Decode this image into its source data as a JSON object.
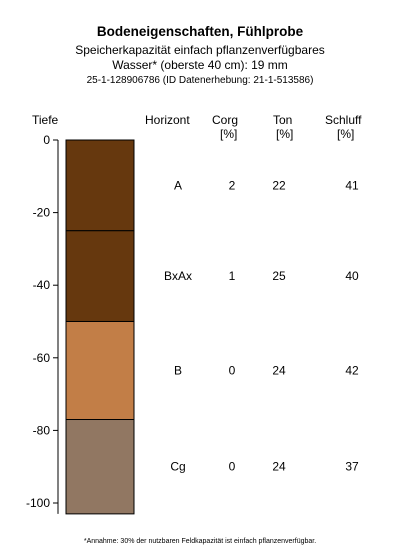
{
  "title": "Bodeneigenschaften, Fühlprobe",
  "subtitle_line1": "Speicherkapazität einfach pflanzenverfügbares",
  "subtitle_line2": "Wasser* (oberste 40 cm): 19 mm",
  "subtitle_line3": "25-1-128906786 (ID Datenerhebung: 21-1-513586)",
  "headers": {
    "depth": "Tiefe",
    "horizon": "Horizont",
    "corg": "Corg",
    "corg_unit": "[%]",
    "ton": "Ton",
    "ton_unit": "[%]",
    "schluff": "Schluff",
    "schluff_unit": "[%]"
  },
  "footnote": "*Annahme: 30% der nutzbaren Feldkapazität ist einfach pflanzenverfügbar.",
  "chart_data": {
    "type": "table",
    "y_axis": {
      "label": "Tiefe",
      "range": [
        0,
        -103
      ],
      "ticks": [
        0,
        -20,
        -40,
        -60,
        -80,
        -100
      ]
    },
    "horizons": [
      {
        "name": "A",
        "top": 0,
        "bottom": -25,
        "color": "#66380e",
        "corg": "2",
        "ton": "22",
        "schluff": "41"
      },
      {
        "name": "BxAx",
        "top": -25,
        "bottom": -50,
        "color": "#66380e",
        "corg": "1",
        "ton": "25",
        "schluff": "40"
      },
      {
        "name": "B",
        "top": -50,
        "bottom": -77,
        "color": "#c27e47",
        "corg": "0",
        "ton": "24",
        "schluff": "42"
      },
      {
        "name": "Cg",
        "top": -77,
        "bottom": -103,
        "color": "#917762",
        "corg": "0",
        "ton": "24",
        "schluff": "37"
      }
    ]
  }
}
